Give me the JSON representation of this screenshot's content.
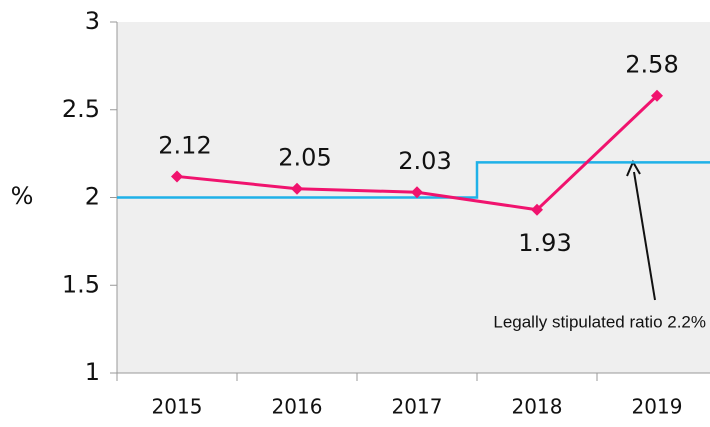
{
  "chart_data": {
    "type": "line",
    "y_label": "%",
    "categories": [
      "2015",
      "2016",
      "2017",
      "2018",
      "2019"
    ],
    "series": [
      {
        "color": "#f0136e",
        "values": [
          2.12,
          2.05,
          2.03,
          1.93,
          2.58
        ]
      }
    ],
    "reference_line": {
      "color": "#1fb1e8",
      "values": [
        2.0,
        2.2
      ]
    },
    "annotation": "Legally stipulated ratio 2.2%",
    "ylim": [
      1,
      3
    ],
    "yticks": [
      1,
      1.5,
      2,
      2.5,
      3
    ]
  }
}
